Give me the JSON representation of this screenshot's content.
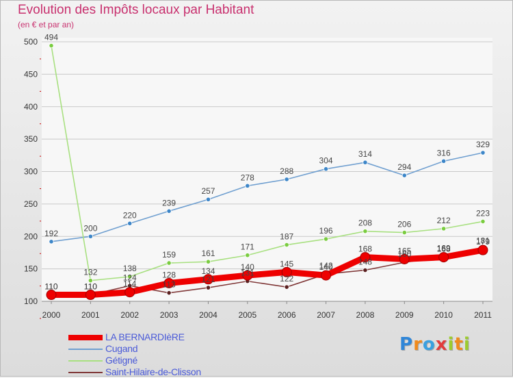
{
  "header": {
    "title": "Evolution des Impôts locaux par Habitant",
    "subtitle": "(en € et par an)"
  },
  "logo": {
    "text": "Proxiti",
    "letters": [
      {
        "ch": "P",
        "color": "#2f86d8"
      },
      {
        "ch": "r",
        "color": "#f08a1c"
      },
      {
        "ch": "o",
        "color": "#3aa0e0"
      },
      {
        "ch": "x",
        "color": "#e23c3c"
      },
      {
        "ch": "i",
        "color": "#9ccc2e"
      },
      {
        "ch": "t",
        "color": "#f08a1c"
      },
      {
        "ch": "i",
        "color": "#9ccc2e"
      }
    ]
  },
  "colors": {
    "title": "#c8306e",
    "axis_text": "#333333",
    "grid": "#c8c8c8",
    "legend_text": "#4a5ad8"
  },
  "chart_data": {
    "type": "line",
    "title": "Evolution des Impôts locaux par Habitant",
    "subtitle": "(en € et par an)",
    "xlabel": "",
    "ylabel": "",
    "x": [
      "2000",
      "2001",
      "2002",
      "2003",
      "2004",
      "2005",
      "2006",
      "2007",
      "2008",
      "2009",
      "2010",
      "2011"
    ],
    "ylim": [
      100,
      500
    ],
    "yticks": [
      100,
      150,
      200,
      250,
      300,
      350,
      400,
      450,
      500
    ],
    "grid": "horizontal",
    "legend_position": "bottom",
    "series": [
      {
        "name": "LA BERNARDIèRE",
        "color": "#ee0000",
        "width": "thick",
        "values": [
          110,
          110,
          114,
          128,
          134,
          140,
          145,
          140,
          168,
          165,
          168,
          179
        ],
        "labels": [
          "110",
          "110",
          "114",
          "128",
          "134",
          "140",
          "145",
          "140",
          "168",
          "165",
          "168",
          "179"
        ]
      },
      {
        "name": "Cugand",
        "color": "#6f9fd0",
        "marker_color": "#3d86c8",
        "width": "thin",
        "values": [
          192,
          200,
          220,
          239,
          257,
          278,
          288,
          304,
          314,
          294,
          316,
          329
        ],
        "labels": [
          "192",
          "200",
          "220",
          "239",
          "257",
          "278",
          "288",
          "304",
          "314",
          "294",
          "316",
          "329"
        ]
      },
      {
        "name": "Gétigné",
        "color": "#a8e080",
        "marker_color": "#7acc40",
        "width": "thin",
        "values": [
          494,
          132,
          138,
          159,
          161,
          171,
          187,
          196,
          208,
          206,
          212,
          223
        ],
        "labels": [
          "494",
          "132",
          "138",
          "159",
          "161",
          "171",
          "187",
          "196",
          "208",
          "206",
          "212",
          "223"
        ]
      },
      {
        "name": "Saint-Hilaire-de-Clisson",
        "color": "#803838",
        "marker_color": "#5a2020",
        "width": "thin",
        "values": [
          110,
          110,
          124,
          113,
          121,
          131,
          122,
          142,
          148,
          160,
          169,
          181
        ],
        "labels": [
          "110",
          "110",
          "124",
          "113",
          "121",
          "131",
          "122",
          "142",
          "148",
          "160",
          "169",
          "181"
        ]
      }
    ]
  }
}
